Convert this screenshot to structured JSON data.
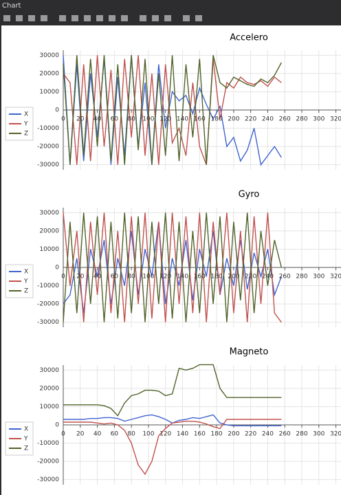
{
  "window_title": "Chart",
  "chart_data": [
    {
      "type": "line",
      "title": "Accelero",
      "x": [
        0,
        8,
        16,
        24,
        32,
        40,
        48,
        56,
        64,
        72,
        80,
        88,
        96,
        104,
        112,
        120,
        128,
        136,
        144,
        152,
        160,
        168,
        176,
        184,
        192,
        200,
        208,
        216,
        224,
        232,
        240,
        248,
        256
      ],
      "series": [
        {
          "name": "X",
          "color": "#3f63cf",
          "values": [
            30000,
            -30000,
            25000,
            -28000,
            20000,
            -15000,
            28000,
            -30000,
            18000,
            -25000,
            30000,
            -20000,
            15000,
            -30000,
            25000,
            -10000,
            10000,
            5000,
            8000,
            -2000,
            12000,
            3000,
            -5000,
            2000,
            -20000,
            -15000,
            -28000,
            -22000,
            -10000,
            -30000,
            -25000,
            -20000,
            -26000
          ]
        },
        {
          "name": "Y",
          "color": "#c0504d",
          "values": [
            20000,
            15000,
            -30000,
            25000,
            -28000,
            30000,
            -20000,
            22000,
            -30000,
            28000,
            -15000,
            30000,
            -25000,
            20000,
            -30000,
            25000,
            -18000,
            -10000,
            -25000,
            15000,
            -20000,
            -30000,
            28000,
            -5000,
            15000,
            12000,
            18000,
            15000,
            14000,
            16000,
            13000,
            18000,
            15000
          ]
        },
        {
          "name": "Z",
          "color": "#4f6228",
          "values": [
            25000,
            -30000,
            30000,
            -25000,
            28000,
            -20000,
            30000,
            -28000,
            25000,
            -30000,
            30000,
            -22000,
            28000,
            -30000,
            20000,
            -25000,
            30000,
            -28000,
            25000,
            -15000,
            28000,
            -30000,
            30000,
            15000,
            12000,
            18000,
            16000,
            14000,
            13000,
            17000,
            15000,
            19000,
            26000
          ]
        }
      ],
      "xlim": [
        0,
        326
      ],
      "ylim": [
        -32768,
        32767
      ],
      "xticks": [
        0,
        20,
        40,
        60,
        80,
        100,
        120,
        140,
        160,
        180,
        200,
        220,
        240,
        260,
        280,
        300,
        320
      ],
      "yticks": [
        -30000,
        -20000,
        -10000,
        0,
        10000,
        20000,
        30000
      ],
      "grid": true
    },
    {
      "type": "line",
      "title": "Gyro",
      "x": [
        0,
        8,
        16,
        24,
        32,
        40,
        48,
        56,
        64,
        72,
        80,
        88,
        96,
        104,
        112,
        120,
        128,
        136,
        144,
        152,
        160,
        168,
        176,
        184,
        192,
        200,
        208,
        216,
        224,
        232,
        240,
        248,
        256
      ],
      "series": [
        {
          "name": "X",
          "color": "#3f63cf",
          "values": [
            -20000,
            -15000,
            5000,
            -25000,
            10000,
            -5000,
            15000,
            -20000,
            5000,
            -10000,
            20000,
            -15000,
            10000,
            -5000,
            25000,
            -20000,
            5000,
            -10000,
            15000,
            -18000,
            10000,
            -5000,
            20000,
            -15000,
            5000,
            -10000,
            15000,
            -12000,
            8000,
            -5000,
            10000,
            -15000,
            -5000
          ]
        },
        {
          "name": "Y",
          "color": "#c0504d",
          "values": [
            30000,
            -10000,
            20000,
            -30000,
            25000,
            -15000,
            30000,
            -25000,
            20000,
            -30000,
            28000,
            -20000,
            30000,
            -28000,
            25000,
            -30000,
            30000,
            -20000,
            28000,
            -25000,
            30000,
            -30000,
            25000,
            -15000,
            30000,
            -25000,
            20000,
            -30000,
            28000,
            -20000,
            30000,
            -25000,
            -30000
          ]
        },
        {
          "name": "Z",
          "color": "#4f6228",
          "values": [
            -30000,
            25000,
            -25000,
            30000,
            -20000,
            28000,
            -30000,
            25000,
            -28000,
            30000,
            -25000,
            28000,
            -30000,
            25000,
            -20000,
            30000,
            -28000,
            25000,
            -30000,
            20000,
            -25000,
            30000,
            -20000,
            28000,
            -30000,
            25000,
            -18000,
            30000,
            -25000,
            20000,
            -10000,
            15000,
            0
          ]
        }
      ],
      "xlim": [
        0,
        326
      ],
      "ylim": [
        -32768,
        32767
      ],
      "xticks": [
        0,
        20,
        40,
        60,
        80,
        100,
        120,
        140,
        160,
        180,
        200,
        220,
        240,
        260,
        280,
        300,
        320
      ],
      "yticks": [
        -30000,
        -20000,
        -10000,
        0,
        10000,
        20000,
        30000
      ],
      "grid": true
    },
    {
      "type": "line",
      "title": "Magneto",
      "x": [
        0,
        8,
        16,
        24,
        32,
        40,
        48,
        56,
        64,
        72,
        80,
        88,
        96,
        104,
        112,
        120,
        128,
        136,
        144,
        152,
        160,
        168,
        176,
        184,
        192,
        200,
        208,
        216,
        224,
        232,
        240,
        248,
        256
      ],
      "series": [
        {
          "name": "X",
          "color": "#3f63cf",
          "values": [
            3000,
            3000,
            3000,
            3000,
            3500,
            3500,
            4000,
            4000,
            3500,
            2000,
            3000,
            4000,
            5000,
            5500,
            4500,
            3000,
            1000,
            2500,
            3000,
            4000,
            3500,
            4500,
            5500,
            1000,
            0,
            -500,
            -500,
            -500,
            -500,
            -500,
            -500,
            -500,
            -500
          ]
        },
        {
          "name": "Y",
          "color": "#c0504d",
          "values": [
            1500,
            1500,
            1500,
            1500,
            1500,
            1000,
            500,
            1000,
            0,
            -3000,
            -10000,
            -22000,
            -27000,
            -20000,
            -6000,
            -2000,
            1000,
            1500,
            2000,
            2000,
            1500,
            500,
            -1000,
            -2000,
            3000,
            3000,
            3000,
            3000,
            3000,
            3000,
            3000,
            3000,
            3000
          ]
        },
        {
          "name": "Z",
          "color": "#4f6228",
          "values": [
            11000,
            11000,
            11000,
            11000,
            11000,
            11000,
            10500,
            9000,
            5000,
            12000,
            16000,
            17000,
            19000,
            19000,
            18500,
            16000,
            17000,
            31000,
            30000,
            31000,
            33000,
            33000,
            33000,
            20000,
            15000,
            15000,
            15000,
            15000,
            15000,
            15000,
            15000,
            15000,
            15000
          ]
        }
      ],
      "xlim": [
        0,
        326
      ],
      "ylim": [
        -32768,
        32767
      ],
      "xticks": [
        0,
        20,
        40,
        60,
        80,
        100,
        120,
        140,
        160,
        180,
        200,
        220,
        240,
        260,
        280,
        300,
        320
      ],
      "yticks": [
        -30000,
        -20000,
        -10000,
        0,
        10000,
        20000,
        30000
      ],
      "grid": true
    }
  ]
}
